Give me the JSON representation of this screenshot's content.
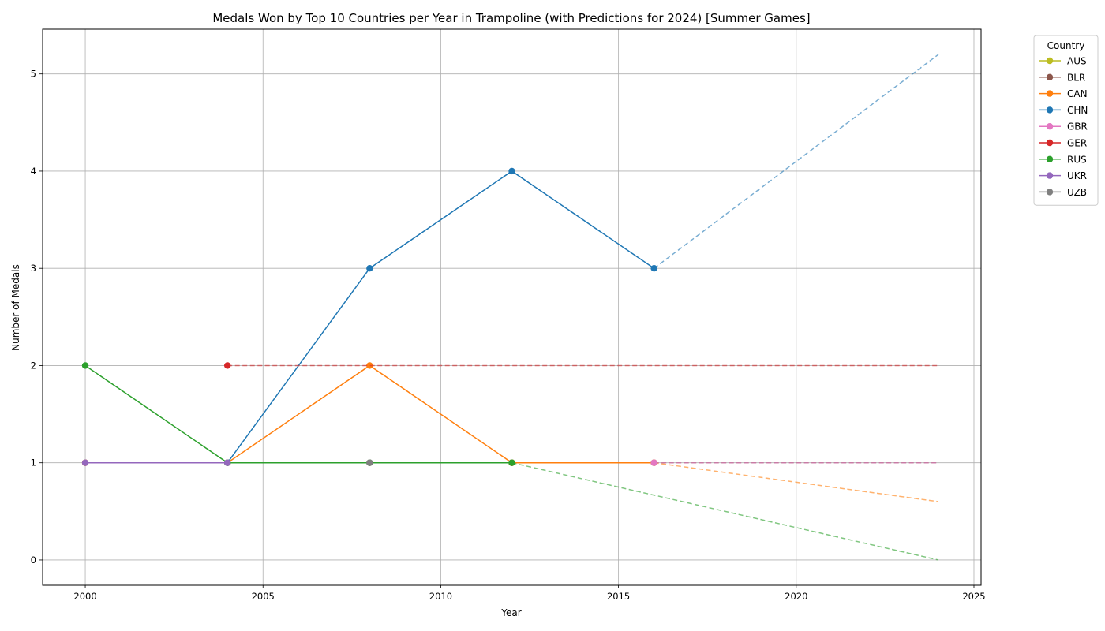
{
  "chart_data": {
    "type": "line",
    "title": "Medals Won by Top 10 Countries per Year in Trampoline (with Predictions for 2024) [Summer Games]",
    "xlabel": "Year",
    "ylabel": "Number of Medals",
    "xlim": [
      1998.8,
      2025.2
    ],
    "ylim": [
      -0.26,
      5.46
    ],
    "xticks": [
      2000,
      2005,
      2010,
      2015,
      2020,
      2025
    ],
    "yticks": [
      0,
      1,
      2,
      3,
      4,
      5
    ],
    "grid": true,
    "legend": {
      "title": "Country",
      "placement": "outside-top-right"
    },
    "prediction_year": 2024,
    "series": [
      {
        "name": "AUS",
        "color": "#bcbd22",
        "x": [
          2004,
          2012
        ],
        "y": [
          1,
          1
        ],
        "prediction": null
      },
      {
        "name": "BLR",
        "color": "#8c564b",
        "x": [
          2000,
          2004,
          2008,
          2012,
          2016
        ],
        "y": [
          1,
          1,
          1,
          1,
          1
        ],
        "prediction": 1.0
      },
      {
        "name": "CAN",
        "color": "#ff7f0e",
        "x": [
          2000,
          2004,
          2008,
          2012,
          2016
        ],
        "y": [
          1,
          1,
          2,
          1,
          1
        ],
        "prediction": 0.6
      },
      {
        "name": "CHN",
        "color": "#1f77b4",
        "x": [
          2004,
          2008,
          2012,
          2016
        ],
        "y": [
          1,
          3,
          4,
          3
        ],
        "prediction": 5.2
      },
      {
        "name": "GBR",
        "color": "#e377c2",
        "x": [
          2016
        ],
        "y": [
          1
        ],
        "prediction": 1.0
      },
      {
        "name": "GER",
        "color": "#d62728",
        "x": [
          2004
        ],
        "y": [
          2
        ],
        "prediction": 2.0
      },
      {
        "name": "RUS",
        "color": "#2ca02c",
        "x": [
          2000,
          2004,
          2008,
          2012
        ],
        "y": [
          2,
          1,
          1,
          1
        ],
        "prediction": 0.0
      },
      {
        "name": "UKR",
        "color": "#9467bd",
        "x": [
          2000,
          2004
        ],
        "y": [
          1,
          1
        ],
        "prediction": null
      },
      {
        "name": "UZB",
        "color": "#7f7f7f",
        "x": [
          2008
        ],
        "y": [
          1
        ],
        "prediction": null
      }
    ]
  }
}
